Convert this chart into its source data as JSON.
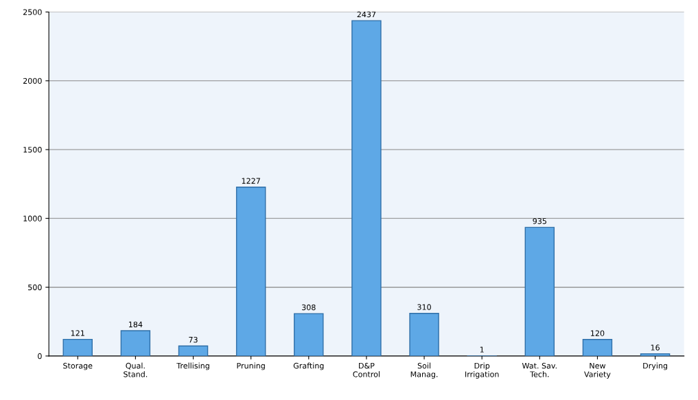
{
  "chart_data": {
    "type": "bar",
    "categories": [
      "Storage",
      "Qual.\nStand.",
      "Trellising",
      "Pruning",
      "Grafting",
      "D&P\nControl",
      "Soil\nManag.",
      "Drip\nIrrigation",
      "Wat. Sav.\nTech.",
      "New\nVariety",
      "Drying"
    ],
    "values": [
      121,
      184,
      73,
      1227,
      308,
      2437,
      310,
      1,
      935,
      120,
      16
    ],
    "color": "#5ea8e6",
    "ylim": [
      0,
      2500
    ],
    "yticks": [
      0,
      500,
      1000,
      1500,
      2000,
      2500
    ],
    "grid": "y",
    "data_labels": true
  }
}
